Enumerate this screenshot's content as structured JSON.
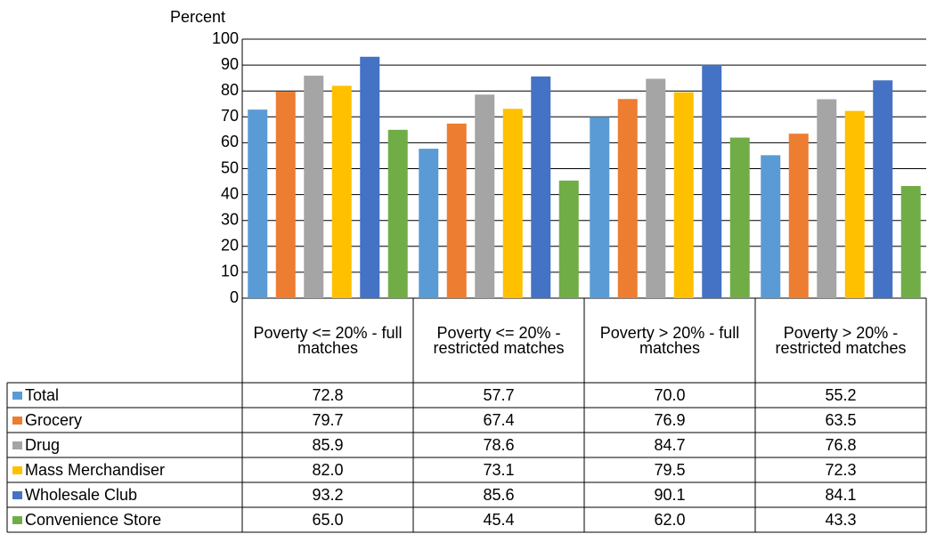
{
  "chart_data": {
    "type": "bar",
    "ylabel": "Percent",
    "categories": [
      "Poverty <= 20% - full matches",
      "Poverty <= 20% - restricted matches",
      "Poverty > 20% - full matches",
      "Poverty > 20% - restricted matches"
    ],
    "series": [
      {
        "name": "Total",
        "color": "#5b9bd5",
        "values": [
          72.8,
          57.7,
          70,
          55.2
        ],
        "value_labels": [
          "72.8",
          "57.7",
          "70.0",
          "55.2"
        ]
      },
      {
        "name": "Grocery",
        "color": "#ed7d31",
        "values": [
          79.7,
          67.4,
          76.9,
          63.5
        ],
        "value_labels": [
          "79.7",
          "67.4",
          "76.9",
          "63.5"
        ]
      },
      {
        "name": "Drug",
        "color": "#a5a5a5",
        "values": [
          85.9,
          78.6,
          84.7,
          76.8
        ],
        "value_labels": [
          "85.9",
          "78.6",
          "84.7",
          "76.8"
        ]
      },
      {
        "name": "Mass Merchandiser",
        "color": "#ffc000",
        "values": [
          82,
          73.1,
          79.5,
          72.3
        ],
        "value_labels": [
          "82.0",
          "73.1",
          "79.5",
          "72.3"
        ]
      },
      {
        "name": "Wholesale Club",
        "color": "#4472c4",
        "values": [
          93.2,
          85.6,
          90.1,
          84.1
        ],
        "value_labels": [
          "93.2",
          "85.6",
          "90.1",
          "84.1"
        ]
      },
      {
        "name": "Convenience Store",
        "color": "#70ad47",
        "values": [
          65,
          45.4,
          62,
          43.3
        ],
        "value_labels": [
          "65.0",
          "45.4",
          "62.0",
          "43.3"
        ]
      }
    ],
    "ylim": [
      0,
      100
    ],
    "yticks": [
      0,
      10,
      20,
      30,
      40,
      50,
      60,
      70,
      80,
      90,
      100
    ],
    "grid": true
  }
}
